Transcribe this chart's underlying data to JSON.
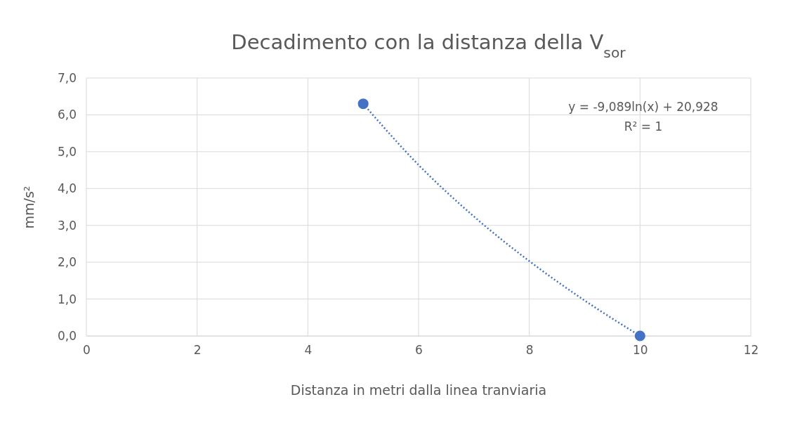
{
  "chart_data": {
    "type": "scatter",
    "title": "Decadimento con la distanza della V$_{sor}$",
    "xlabel": "Distanza in metri dalla linea tranviaria",
    "ylabel": "mm/s²",
    "xlim": [
      0,
      12
    ],
    "xticks": [
      0,
      2,
      4,
      6,
      8,
      10,
      12
    ],
    "ylim": [
      0,
      7
    ],
    "yticks": [
      {
        "value": 0,
        "label": "0,0"
      },
      {
        "value": 1,
        "label": "1,0"
      },
      {
        "value": 2,
        "label": "2,0"
      },
      {
        "value": 3,
        "label": "3,0"
      },
      {
        "value": 4,
        "label": "4,0"
      },
      {
        "value": 5,
        "label": "5,0"
      },
      {
        "value": 6,
        "label": "6,0"
      },
      {
        "value": 7,
        "label": "7,0"
      }
    ],
    "grid": true,
    "series": [
      {
        "type": "line",
        "x": [
          5,
          6,
          7,
          8,
          9,
          10
        ],
        "values": [
          6.3,
          4.64,
          3.24,
          2.03,
          0.96,
          0
        ],
        "color": "#4472c4",
        "line_style": "dotted",
        "marker": "none"
      },
      {
        "type": "scatter",
        "x": [
          5,
          10
        ],
        "values": [
          6.3,
          0
        ],
        "color": "#4472c4",
        "marker": "circle"
      }
    ],
    "annotations": [
      "y = -9,089ln(x) + 20,928",
      "R² = 1"
    ]
  }
}
